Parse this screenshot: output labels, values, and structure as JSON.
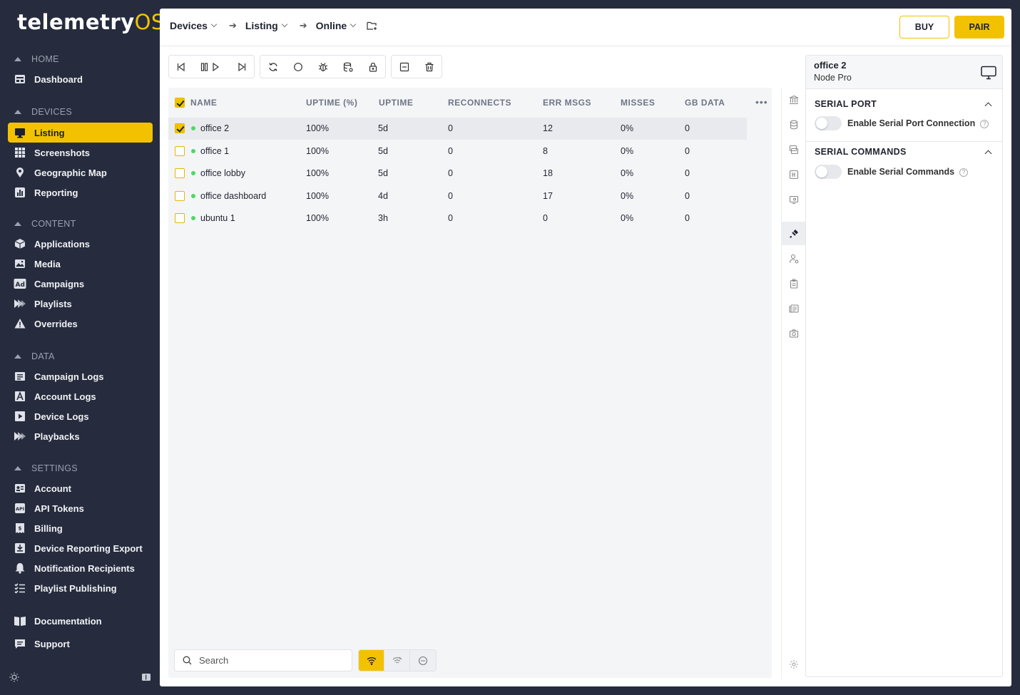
{
  "app": {
    "logo_main": "telemetry",
    "logo_accent": "OS"
  },
  "sidebar": {
    "sections": [
      {
        "label": "HOME",
        "items": [
          {
            "label": "Dashboard",
            "icon": "dashboard-icon"
          }
        ]
      },
      {
        "label": "DEVICES",
        "items": [
          {
            "label": "Listing",
            "icon": "monitor-icon",
            "active": true
          },
          {
            "label": "Screenshots",
            "icon": "grid-icon"
          },
          {
            "label": "Geographic Map",
            "icon": "map-pin-icon"
          },
          {
            "label": "Reporting",
            "icon": "bar-chart-icon"
          }
        ]
      },
      {
        "label": "CONTENT",
        "items": [
          {
            "label": "Applications",
            "icon": "cube-icon"
          },
          {
            "label": "Media",
            "icon": "image-icon"
          },
          {
            "label": "Campaigns",
            "icon": "ad-icon"
          },
          {
            "label": "Playlists",
            "icon": "playlist-icon"
          },
          {
            "label": "Overrides",
            "icon": "warning-icon"
          }
        ]
      },
      {
        "label": "DATA",
        "items": [
          {
            "label": "Campaign Logs",
            "icon": "log-icon"
          },
          {
            "label": "Account Logs",
            "icon": "account-log-icon"
          },
          {
            "label": "Device Logs",
            "icon": "device-log-icon"
          },
          {
            "label": "Playbacks",
            "icon": "playback-icon"
          }
        ]
      },
      {
        "label": "SETTINGS",
        "items": [
          {
            "label": "Account",
            "icon": "id-card-icon"
          },
          {
            "label": "API Tokens",
            "icon": "api-icon"
          },
          {
            "label": "Billing",
            "icon": "billing-icon"
          },
          {
            "label": "Device Reporting Export",
            "icon": "download-icon"
          },
          {
            "label": "Notification Recipients",
            "icon": "bell-icon"
          },
          {
            "label": "Playlist Publishing",
            "icon": "checklist-icon"
          }
        ]
      }
    ],
    "footer_links": [
      {
        "label": "Documentation",
        "icon": "book-icon"
      },
      {
        "label": "Support",
        "icon": "chat-icon"
      }
    ]
  },
  "header": {
    "breadcrumbs": [
      "Devices",
      "Listing",
      "Online"
    ],
    "buy_label": "BUY",
    "pair_label": "PAIR"
  },
  "table": {
    "columns": [
      "NAME",
      "UPTIME (%)",
      "UPTIME",
      "RECONNECTS",
      "ERR MSGS",
      "MISSES",
      "GB DATA"
    ],
    "header_checked": true,
    "rows": [
      {
        "name": "office 2",
        "uptime_pct": "100%",
        "uptime": "5d",
        "reconnects": "0",
        "err_msgs": "12",
        "misses": "0%",
        "gb_data": "0",
        "checked": true,
        "online": true
      },
      {
        "name": "office 1",
        "uptime_pct": "100%",
        "uptime": "5d",
        "reconnects": "0",
        "err_msgs": "8",
        "misses": "0%",
        "gb_data": "0",
        "checked": false,
        "online": true
      },
      {
        "name": "office lobby",
        "uptime_pct": "100%",
        "uptime": "5d",
        "reconnects": "0",
        "err_msgs": "18",
        "misses": "0%",
        "gb_data": "0",
        "checked": false,
        "online": true
      },
      {
        "name": "office dashboard",
        "uptime_pct": "100%",
        "uptime": "4d",
        "reconnects": "0",
        "err_msgs": "17",
        "misses": "0%",
        "gb_data": "0",
        "checked": false,
        "online": true
      },
      {
        "name": "ubuntu 1",
        "uptime_pct": "100%",
        "uptime": "3h",
        "reconnects": "0",
        "err_msgs": "0",
        "misses": "0%",
        "gb_data": "0",
        "checked": false,
        "online": true
      }
    ]
  },
  "search": {
    "placeholder": "Search",
    "value": ""
  },
  "filters": {
    "active": "online"
  },
  "detail": {
    "device_name": "office 2",
    "device_type": "Node Pro",
    "serial_port": {
      "title": "SERIAL PORT",
      "toggle_label": "Enable Serial Port Connection",
      "enabled": false
    },
    "serial_commands": {
      "title": "SERIAL COMMANDS",
      "toggle_label": "Enable Serial Commands",
      "enabled": false
    }
  },
  "colors": {
    "accent": "#f2c200",
    "sidebar_bg": "#262c3d",
    "online": "#4cd964"
  }
}
